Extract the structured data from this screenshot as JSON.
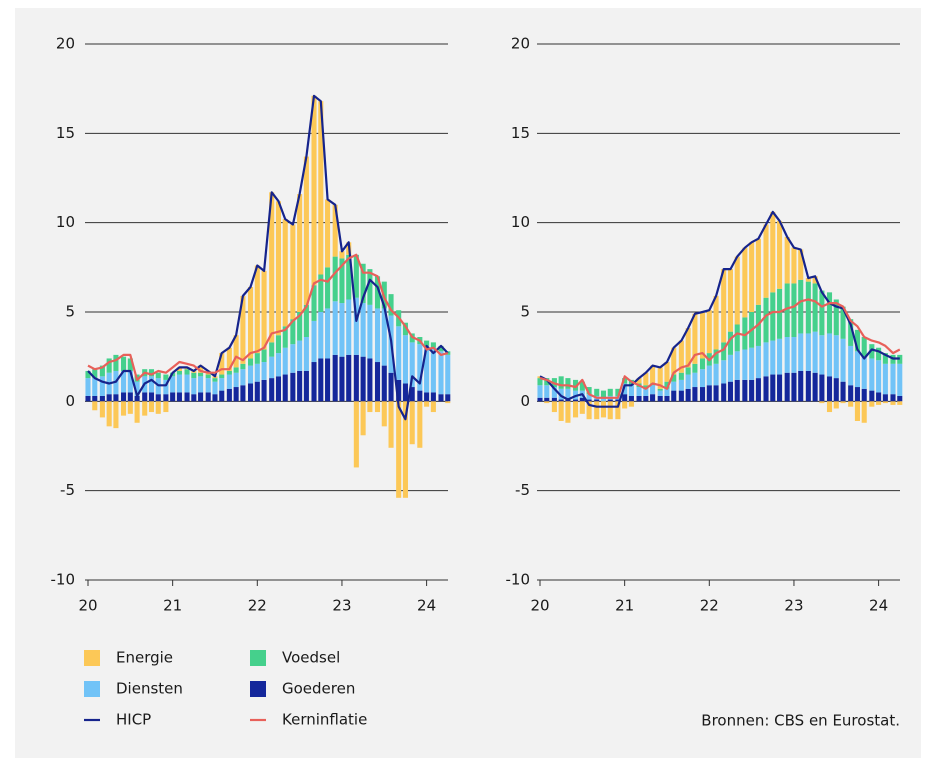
{
  "chart_data": [
    {
      "type": "bar",
      "stacked": true,
      "x": [
        20,
        20.08,
        20.17,
        20.25,
        20.33,
        20.42,
        20.5,
        20.58,
        20.67,
        20.75,
        20.83,
        20.92,
        21,
        21.08,
        21.17,
        21.25,
        21.33,
        21.42,
        21.5,
        21.58,
        21.67,
        21.75,
        21.83,
        21.92,
        22,
        22.08,
        22.17,
        22.25,
        22.33,
        22.42,
        22.5,
        22.58,
        22.67,
        22.75,
        22.83,
        22.92,
        23,
        23.08,
        23.17,
        23.25,
        23.33,
        23.42,
        23.5,
        23.58,
        23.67,
        23.75,
        23.83,
        23.92,
        24,
        24.08,
        24.17,
        24.25
      ],
      "xlim": [
        20,
        24.3
      ],
      "xticks": [
        20,
        21,
        22,
        23,
        24
      ],
      "ylim": [
        -10,
        20
      ],
      "yticks": [
        -10,
        -5,
        0,
        5,
        10,
        15,
        20
      ],
      "grid": true,
      "series": [
        {
          "name": "Energie",
          "type": "bar",
          "color": "#fcc857",
          "values": [
            0.0,
            -0.5,
            -0.9,
            -1.4,
            -1.5,
            -0.8,
            -0.7,
            -1.2,
            -0.8,
            -0.6,
            -0.7,
            -0.6,
            0.0,
            0.2,
            0.1,
            0.1,
            0.4,
            0.2,
            0.1,
            1.2,
            1.3,
            1.8,
            3.8,
            4.0,
            4.9,
            4.4,
            8.4,
            7.5,
            6.0,
            5.3,
            6.6,
            8.3,
            10.6,
            9.7,
            3.8,
            2.9,
            0.4,
            0.7,
            -3.7,
            -1.9,
            -0.6,
            -0.6,
            -1.4,
            -2.6,
            -5.4,
            -5.4,
            -2.4,
            -2.6,
            -0.3,
            -0.6,
            0.0,
            -0.1
          ]
        },
        {
          "name": "Voedsel",
          "type": "bar",
          "color": "#45d08c",
          "values": [
            0.4,
            0.5,
            0.6,
            0.8,
            0.9,
            0.8,
            0.7,
            0.4,
            0.4,
            0.4,
            0.3,
            0.3,
            0.2,
            0.2,
            0.3,
            0.3,
            0.2,
            0.2,
            0.2,
            0.2,
            0.2,
            0.3,
            0.3,
            0.4,
            0.6,
            0.7,
            0.8,
            1.0,
            1.2,
            1.4,
            1.6,
            1.8,
            2.0,
            2.1,
            2.3,
            2.5,
            2.5,
            2.5,
            2.4,
            2.2,
            2.0,
            1.8,
            1.5,
            1.2,
            0.9,
            0.7,
            0.5,
            0.4,
            0.3,
            0.3,
            0.3,
            0.2
          ]
        },
        {
          "name": "Diensten",
          "type": "bar",
          "color": "#71c3f7",
          "values": [
            1.0,
            1.0,
            1.1,
            1.2,
            1.3,
            1.2,
            1.2,
            0.8,
            0.9,
            0.9,
            0.9,
            0.8,
            0.9,
            1.0,
            1.0,
            0.9,
            0.9,
            0.8,
            0.7,
            0.7,
            0.8,
            0.8,
            0.9,
            1.0,
            1.0,
            1.0,
            1.2,
            1.3,
            1.5,
            1.6,
            1.7,
            1.9,
            2.3,
            2.6,
            2.8,
            3.0,
            3.0,
            3.1,
            3.2,
            3.0,
            3.0,
            3.0,
            3.2,
            3.2,
            3.0,
            2.7,
            2.5,
            2.6,
            2.6,
            2.5,
            2.4,
            2.2
          ]
        },
        {
          "name": "Goederen",
          "type": "bar",
          "color": "#14279b",
          "values": [
            0.3,
            0.3,
            0.3,
            0.4,
            0.4,
            0.5,
            0.5,
            0.3,
            0.5,
            0.5,
            0.4,
            0.4,
            0.5,
            0.5,
            0.5,
            0.4,
            0.5,
            0.5,
            0.4,
            0.6,
            0.7,
            0.8,
            0.9,
            1.0,
            1.1,
            1.2,
            1.3,
            1.4,
            1.5,
            1.6,
            1.7,
            1.7,
            2.2,
            2.4,
            2.4,
            2.6,
            2.5,
            2.6,
            2.6,
            2.5,
            2.4,
            2.2,
            2.0,
            1.6,
            1.2,
            1.0,
            0.8,
            0.6,
            0.5,
            0.5,
            0.4,
            0.4
          ]
        },
        {
          "name": "HICP",
          "type": "line",
          "color": "#16248c",
          "values": [
            1.7,
            1.3,
            1.1,
            1.0,
            1.1,
            1.7,
            1.7,
            0.3,
            1.0,
            1.2,
            0.9,
            0.9,
            1.6,
            1.9,
            1.9,
            1.7,
            2.0,
            1.7,
            1.4,
            2.7,
            3.0,
            3.7,
            5.9,
            6.4,
            7.6,
            7.3,
            11.7,
            11.2,
            10.2,
            9.9,
            11.6,
            13.7,
            17.1,
            16.8,
            11.3,
            11.0,
            8.4,
            8.9,
            4.5,
            5.8,
            6.8,
            6.4,
            5.3,
            3.4,
            -0.3,
            -1.0,
            1.4,
            1.0,
            3.1,
            2.7,
            3.1,
            2.7
          ]
        },
        {
          "name": "Kerninflatie",
          "type": "line",
          "color": "#e8605a",
          "values": [
            2.0,
            1.8,
            1.9,
            2.2,
            2.3,
            2.6,
            2.6,
            1.2,
            1.6,
            1.5,
            1.7,
            1.6,
            1.9,
            2.2,
            2.1,
            2.0,
            1.7,
            1.6,
            1.6,
            1.8,
            1.8,
            2.5,
            2.3,
            2.7,
            2.8,
            3.0,
            3.8,
            3.9,
            4.0,
            4.5,
            4.8,
            5.3,
            6.6,
            6.8,
            6.7,
            7.2,
            7.6,
            8.0,
            8.2,
            7.2,
            7.2,
            7.0,
            5.8,
            5.1,
            4.7,
            4.2,
            3.6,
            3.4,
            2.9,
            3.0,
            2.6,
            2.7
          ]
        }
      ]
    },
    {
      "type": "bar",
      "stacked": true,
      "x": [
        20,
        20.08,
        20.17,
        20.25,
        20.33,
        20.42,
        20.5,
        20.58,
        20.67,
        20.75,
        20.83,
        20.92,
        21,
        21.08,
        21.17,
        21.25,
        21.33,
        21.42,
        21.5,
        21.58,
        21.67,
        21.75,
        21.83,
        21.92,
        22,
        22.08,
        22.17,
        22.25,
        22.33,
        22.42,
        22.5,
        22.58,
        22.67,
        22.75,
        22.83,
        22.92,
        23,
        23.08,
        23.17,
        23.25,
        23.33,
        23.42,
        23.5,
        23.58,
        23.67,
        23.75,
        23.83,
        23.92,
        24,
        24.08,
        24.17,
        24.25
      ],
      "xlim": [
        20,
        24.3
      ],
      "xticks": [
        20,
        21,
        22,
        23,
        24
      ],
      "ylim": [
        -10,
        20
      ],
      "yticks": [
        -10,
        -5,
        0,
        5,
        10,
        15,
        20
      ],
      "grid": true,
      "series": [
        {
          "name": "Energie",
          "type": "bar",
          "color": "#fcc857",
          "values": [
            0.1,
            -0.1,
            -0.6,
            -1.1,
            -1.2,
            -0.9,
            -0.7,
            -1.0,
            -1.0,
            -0.9,
            -1.0,
            -1.0,
            -0.4,
            -0.3,
            0.3,
            0.7,
            1.0,
            1.2,
            1.1,
            1.5,
            1.8,
            2.2,
            2.8,
            2.6,
            2.4,
            3.0,
            4.1,
            3.5,
            3.8,
            3.9,
            3.9,
            3.7,
            4.1,
            4.5,
            3.8,
            2.6,
            2.0,
            1.7,
            0.2,
            0.4,
            -0.1,
            -0.6,
            -0.4,
            -0.1,
            -0.3,
            -1.1,
            -1.2,
            -0.3,
            -0.2,
            -0.1,
            -0.2,
            -0.2
          ]
        },
        {
          "name": "Voedsel",
          "type": "bar",
          "color": "#45d08c",
          "values": [
            0.4,
            0.4,
            0.5,
            0.7,
            0.6,
            0.6,
            0.5,
            0.4,
            0.4,
            0.4,
            0.4,
            0.4,
            0.3,
            0.3,
            0.2,
            0.2,
            0.1,
            0.1,
            0.4,
            0.4,
            0.4,
            0.4,
            0.5,
            0.6,
            0.7,
            0.8,
            1.0,
            1.3,
            1.5,
            1.8,
            2.0,
            2.3,
            2.5,
            2.7,
            2.8,
            3.0,
            3.0,
            3.0,
            2.9,
            2.7,
            2.5,
            2.3,
            2.0,
            1.8,
            1.5,
            1.2,
            1.1,
            0.8,
            0.7,
            0.6,
            0.5,
            0.5
          ]
        },
        {
          "name": "Diensten",
          "type": "bar",
          "color": "#71c3f7",
          "values": [
            0.7,
            0.7,
            0.6,
            0.6,
            0.6,
            0.5,
            0.4,
            0.3,
            0.2,
            0.2,
            0.2,
            0.2,
            0.6,
            0.6,
            0.5,
            0.4,
            0.5,
            0.3,
            0.4,
            0.5,
            0.6,
            0.8,
            0.8,
            1.0,
            1.1,
            1.2,
            1.3,
            1.5,
            1.6,
            1.7,
            1.8,
            1.8,
            1.9,
            1.9,
            2.0,
            2.0,
            2.0,
            2.1,
            2.1,
            2.3,
            2.2,
            2.4,
            2.4,
            2.4,
            2.2,
            2.0,
            1.8,
            1.8,
            1.8,
            1.7,
            1.7,
            1.8
          ]
        },
        {
          "name": "Goederen",
          "type": "bar",
          "color": "#14279b",
          "values": [
            0.2,
            0.2,
            0.2,
            0.1,
            0.1,
            0.1,
            0.2,
            0.1,
            0.1,
            0.0,
            0.1,
            0.1,
            0.4,
            0.3,
            0.3,
            0.3,
            0.4,
            0.3,
            0.3,
            0.6,
            0.6,
            0.7,
            0.8,
            0.8,
            0.9,
            0.9,
            1.0,
            1.1,
            1.2,
            1.2,
            1.2,
            1.3,
            1.4,
            1.5,
            1.5,
            1.6,
            1.6,
            1.7,
            1.7,
            1.6,
            1.5,
            1.4,
            1.3,
            1.1,
            0.9,
            0.8,
            0.7,
            0.6,
            0.5,
            0.4,
            0.4,
            0.3
          ]
        },
        {
          "name": "HICP",
          "type": "line",
          "color": "#16248c",
          "values": [
            1.4,
            1.2,
            0.7,
            0.3,
            0.1,
            0.3,
            0.4,
            -0.2,
            -0.3,
            -0.3,
            -0.3,
            -0.3,
            0.9,
            0.9,
            1.3,
            1.6,
            2.0,
            1.9,
            2.2,
            3.0,
            3.4,
            4.1,
            4.9,
            5.0,
            5.1,
            5.9,
            7.4,
            7.4,
            8.1,
            8.6,
            8.9,
            9.1,
            9.9,
            10.6,
            10.1,
            9.2,
            8.6,
            8.5,
            6.9,
            7.0,
            6.1,
            5.5,
            5.3,
            5.2,
            4.3,
            2.9,
            2.4,
            2.9,
            2.8,
            2.6,
            2.4,
            2.4
          ]
        },
        {
          "name": "Kerninflatie",
          "type": "line",
          "color": "#e8605a",
          "values": [
            1.3,
            1.2,
            1.0,
            0.9,
            0.9,
            0.8,
            1.2,
            0.4,
            0.2,
            0.2,
            0.2,
            0.2,
            1.4,
            1.1,
            0.9,
            0.7,
            1.0,
            0.9,
            0.7,
            1.6,
            1.9,
            2.0,
            2.6,
            2.7,
            2.3,
            2.7,
            2.9,
            3.5,
            3.8,
            3.7,
            4.0,
            4.3,
            4.8,
            5.0,
            5.0,
            5.2,
            5.3,
            5.6,
            5.7,
            5.6,
            5.3,
            5.5,
            5.5,
            5.3,
            4.5,
            4.2,
            3.6,
            3.4,
            3.3,
            3.1,
            2.7,
            2.9
          ]
        }
      ]
    }
  ],
  "source": "Bronnen: CBS en Eurostat."
}
